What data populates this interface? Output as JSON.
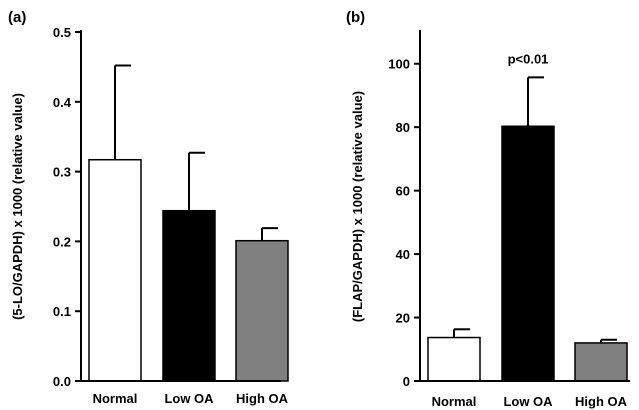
{
  "chart_data": [
    {
      "type": "bar",
      "panel_label": "(a)",
      "ylabel": "(5-LO/GAPDH) x 1000 (relative value)",
      "xlabel": "",
      "categories": [
        "Normal",
        "Low OA",
        "High OA"
      ],
      "values": [
        0.317,
        0.244,
        0.201
      ],
      "errors": [
        0.135,
        0.083,
        0.018
      ],
      "bar_colors": [
        "#ffffff",
        "#000000",
        "#808080"
      ],
      "ylim": [
        0.0,
        0.5
      ],
      "yticks": [
        0.0,
        0.1,
        0.2,
        0.3,
        0.4,
        0.5
      ],
      "ytick_labels": [
        "0.0",
        "0.1",
        "0.2",
        "0.3",
        "0.4",
        "0.5"
      ],
      "annotations": []
    },
    {
      "type": "bar",
      "panel_label": "(b)",
      "ylabel": "(FLAP/GAPDH) x 1000 (relative value)",
      "xlabel": "",
      "categories": [
        "Normal",
        "Low OA",
        "High OA"
      ],
      "values": [
        13.7,
        80.3,
        12.0
      ],
      "errors": [
        2.6,
        15.4,
        1.0
      ],
      "bar_colors": [
        "#ffffff",
        "#000000",
        "#808080"
      ],
      "ylim": [
        0,
        110
      ],
      "yticks": [
        0,
        20,
        40,
        60,
        80,
        100
      ],
      "ytick_labels": [
        "0",
        "20",
        "40",
        "60",
        "80",
        "100"
      ],
      "annotations": [
        {
          "text": "p<0.01",
          "category": "Low OA"
        }
      ]
    }
  ]
}
